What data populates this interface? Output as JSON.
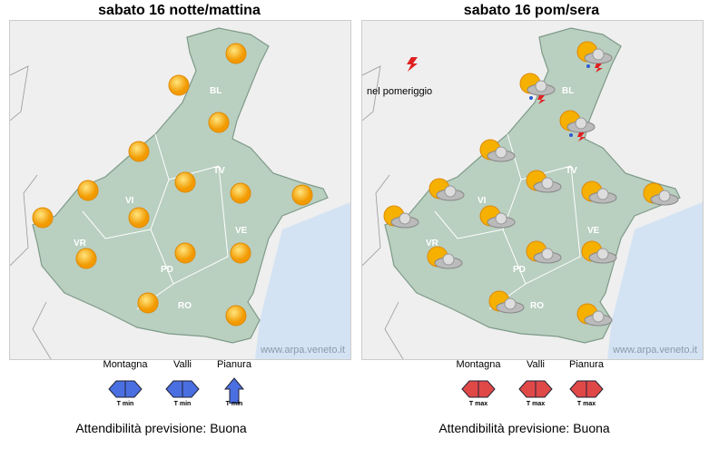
{
  "left": {
    "title": "sabato 16 notte/mattina",
    "watermark": "www.arpa.veneto.it",
    "reliability": "Attendibilità previsione: Buona",
    "legend": [
      {
        "label": "Montagna",
        "icon": "double-arrow-blue",
        "tag": "T min"
      },
      {
        "label": "Valli",
        "icon": "double-arrow-blue",
        "tag": "T min"
      },
      {
        "label": "Pianura",
        "icon": "up-arrow-blue",
        "tag": "T min"
      }
    ]
  },
  "right": {
    "title": "sabato 16 pom/sera",
    "watermark": "www.arpa.veneto.it",
    "reliability": "Attendibilità previsione: Buona",
    "note": "nel pomeriggio",
    "legend": [
      {
        "label": "Montagna",
        "icon": "double-arrow-red",
        "tag": "T max"
      },
      {
        "label": "Valli",
        "icon": "double-arrow-red",
        "tag": "T max"
      },
      {
        "label": "Pianura",
        "icon": "double-arrow-red",
        "tag": "T max"
      }
    ]
  },
  "provinces": [
    "BL",
    "TV",
    "VI",
    "VR",
    "PD",
    "VE",
    "RO"
  ],
  "colors": {
    "region": "#b9cfc0",
    "sea": "#d4e3f3",
    "sun": "#f5a800",
    "cold": "#4a6fe0",
    "warm": "#e04848"
  }
}
